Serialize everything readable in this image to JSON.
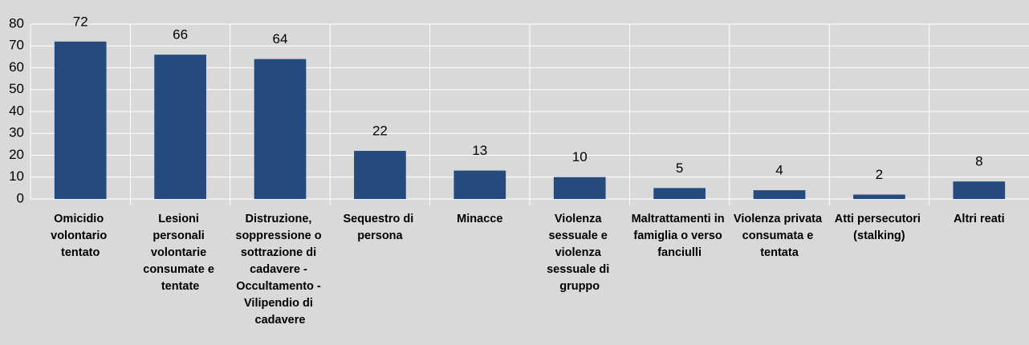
{
  "chart_data": {
    "type": "bar",
    "categories": [
      "Omicidio volontario tentato",
      "Lesioni personali volontarie consumate e tentate",
      "Distruzione, soppressione o sottrazione di cadavere - Occultamento - Vilipendio di cadavere",
      "Sequestro di persona",
      "Minacce",
      "Violenza sessuale e violenza sessuale di gruppo",
      "Maltrattamenti in famiglia o verso fanciulli",
      "Violenza privata consumata e tentata",
      "Atti persecutori (stalking)",
      "Altri reati"
    ],
    "values": [
      72,
      66,
      64,
      22,
      13,
      10,
      5,
      4,
      2,
      8
    ],
    "color": "#254a7e",
    "ylim": [
      0,
      80
    ],
    "yticks": [
      0,
      10,
      20,
      30,
      40,
      50,
      60,
      70,
      80
    ],
    "grid": true
  }
}
